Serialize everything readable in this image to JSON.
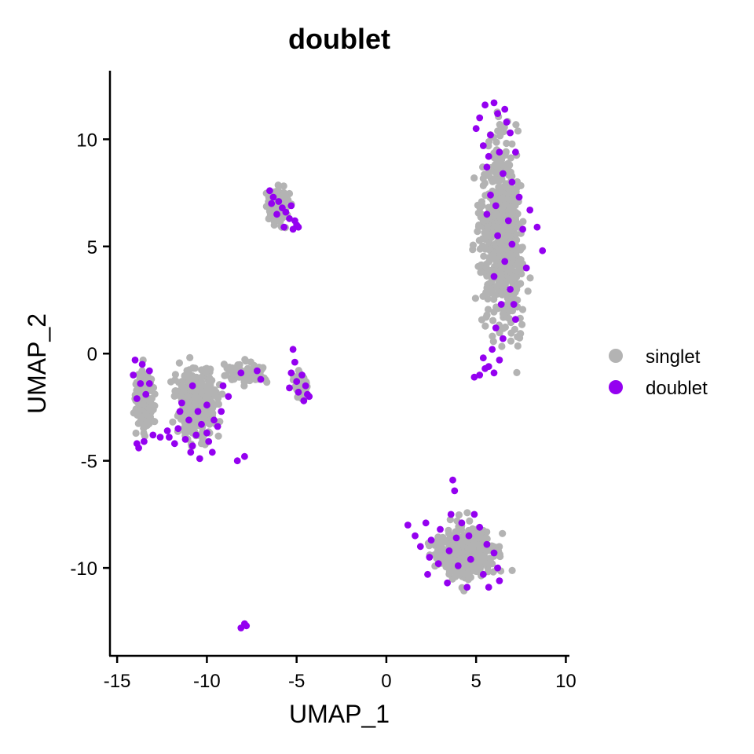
{
  "chart_data": {
    "type": "scatter",
    "title": "doublet",
    "xlabel": "UMAP_1",
    "ylabel": "UMAP_2",
    "xlim": [
      -15.4,
      10.2
    ],
    "ylim": [
      -14.1,
      13.2
    ],
    "xticks": [
      -15,
      -10,
      -5,
      0,
      5,
      10
    ],
    "yticks": [
      -10,
      -5,
      0,
      5,
      10
    ],
    "grid": false,
    "legend": {
      "position": "right",
      "entries": [
        "singlet",
        "doublet"
      ]
    },
    "colors": {
      "singlet": "#b3b3b3",
      "doublet": "#9400f0"
    },
    "clusters": [
      {
        "name": "right-upper",
        "cx": 6.4,
        "cy": 5.5,
        "sx": 1.1,
        "sy": 3.8,
        "n": 650
      },
      {
        "name": "right-lower",
        "cx": 4.5,
        "cy": -9.3,
        "sx": 1.5,
        "sy": 1.1,
        "n": 450
      },
      {
        "name": "left-core",
        "cx": -10.5,
        "cy": -2.3,
        "sx": 1.0,
        "sy": 1.4,
        "n": 450
      },
      {
        "name": "left-wing",
        "cx": -13.5,
        "cy": -2.2,
        "sx": 0.5,
        "sy": 1.3,
        "n": 160
      },
      {
        "name": "left-arm",
        "cx": -7.8,
        "cy": -0.9,
        "sx": 1.0,
        "sy": 0.5,
        "n": 90
      },
      {
        "name": "top-small",
        "cx": -6.0,
        "cy": 6.8,
        "sx": 0.5,
        "sy": 0.8,
        "n": 130
      },
      {
        "name": "middle-small",
        "cx": -4.8,
        "cy": -1.5,
        "sx": 0.4,
        "sy": 0.5,
        "n": 40
      }
    ],
    "series": [
      {
        "name": "doublet",
        "points": [
          [
            6.0,
            11.7
          ],
          [
            5.5,
            11.6
          ],
          [
            6.2,
            11.2
          ],
          [
            5.2,
            11.0
          ],
          [
            6.6,
            11.4
          ],
          [
            5.0,
            10.5
          ],
          [
            5.8,
            10.2
          ],
          [
            6.7,
            10.8
          ],
          [
            5.4,
            9.7
          ],
          [
            6.3,
            9.4
          ],
          [
            7.2,
            9.4
          ],
          [
            5.6,
            8.7
          ],
          [
            6.5,
            8.4
          ],
          [
            7.0,
            8.0
          ],
          [
            5.8,
            7.4
          ],
          [
            6.1,
            6.9
          ],
          [
            7.4,
            7.3
          ],
          [
            8.0,
            6.7
          ],
          [
            5.6,
            6.5
          ],
          [
            6.8,
            6.2
          ],
          [
            7.6,
            5.8
          ],
          [
            8.4,
            5.9
          ],
          [
            6.2,
            5.5
          ],
          [
            7.0,
            5.1
          ],
          [
            8.7,
            4.8
          ],
          [
            6.6,
            4.3
          ],
          [
            7.8,
            4.0
          ],
          [
            6.0,
            3.6
          ],
          [
            6.9,
            3.0
          ],
          [
            6.4,
            2.3
          ],
          [
            7.2,
            1.6
          ],
          [
            6.1,
            1.2
          ],
          [
            6.5,
            0.7
          ],
          [
            5.9,
            0.2
          ],
          [
            6.3,
            -0.3
          ],
          [
            5.7,
            -0.6
          ],
          [
            6.0,
            -0.9
          ],
          [
            5.5,
            -0.7
          ],
          [
            5.2,
            -1.0
          ],
          [
            4.9,
            -1.1
          ],
          [
            5.4,
            -0.2
          ],
          [
            7.1,
            2.3
          ],
          [
            6.9,
            10.3
          ],
          [
            5.7,
            9.2
          ],
          [
            3.7,
            -5.9
          ],
          [
            3.8,
            -6.4
          ],
          [
            1.2,
            -8.0
          ],
          [
            1.6,
            -8.5
          ],
          [
            2.2,
            -7.9
          ],
          [
            2.5,
            -8.7
          ],
          [
            3.0,
            -8.2
          ],
          [
            3.6,
            -7.5
          ],
          [
            4.2,
            -7.9
          ],
          [
            4.6,
            -8.5
          ],
          [
            5.2,
            -8.1
          ],
          [
            5.6,
            -8.9
          ],
          [
            6.0,
            -9.3
          ],
          [
            2.4,
            -9.5
          ],
          [
            2.9,
            -9.8
          ],
          [
            3.5,
            -9.2
          ],
          [
            4.0,
            -9.9
          ],
          [
            4.7,
            -9.6
          ],
          [
            5.4,
            -10.3
          ],
          [
            6.2,
            -10.0
          ],
          [
            2.3,
            -10.3
          ],
          [
            3.4,
            -10.7
          ],
          [
            4.5,
            -10.9
          ],
          [
            5.7,
            -10.9
          ],
          [
            6.3,
            -10.6
          ],
          [
            3.9,
            -8.6
          ],
          [
            4.9,
            -7.5
          ],
          [
            1.9,
            -9.0
          ],
          [
            -10.8,
            -1.5
          ],
          [
            -10.0,
            -2.4
          ],
          [
            -11.4,
            -2.3
          ],
          [
            -9.6,
            -3.1
          ],
          [
            -11.0,
            -3.1
          ],
          [
            -10.3,
            -3.3
          ],
          [
            -10.6,
            -3.8
          ],
          [
            -10.0,
            -3.7
          ],
          [
            -11.6,
            -3.5
          ],
          [
            -9.4,
            -3.4
          ],
          [
            -10.5,
            -2.7
          ],
          [
            -9.9,
            -4.1
          ],
          [
            -10.8,
            -4.3
          ],
          [
            -11.2,
            -4.0
          ],
          [
            -9.7,
            -4.6
          ],
          [
            -10.9,
            -4.6
          ],
          [
            -10.4,
            -4.9
          ],
          [
            -11.8,
            -4.2
          ],
          [
            -12.1,
            -3.9
          ],
          [
            -11.5,
            -2.7
          ],
          [
            -9.2,
            -2.7
          ],
          [
            -14.0,
            -0.3
          ],
          [
            -13.6,
            -0.5
          ],
          [
            -14.1,
            -1.0
          ],
          [
            -13.7,
            -1.4
          ],
          [
            -13.2,
            -1.4
          ],
          [
            -13.9,
            -2.1
          ],
          [
            -13.4,
            -1.9
          ],
          [
            -13.0,
            -3.8
          ],
          [
            -13.5,
            -4.1
          ],
          [
            -13.9,
            -4.2
          ],
          [
            -12.6,
            -3.9
          ],
          [
            -12.2,
            -3.6
          ],
          [
            -13.2,
            -0.8
          ],
          [
            -13.8,
            -4.4
          ],
          [
            -8.3,
            -5.0
          ],
          [
            -7.9,
            -4.8
          ],
          [
            -8.1,
            -0.9
          ],
          [
            -7.2,
            -0.8
          ],
          [
            -7.0,
            -1.2
          ],
          [
            -9.1,
            -1.5
          ],
          [
            -8.8,
            -2.0
          ],
          [
            -6.5,
            7.6
          ],
          [
            -6.3,
            7.3
          ],
          [
            -6.0,
            7.1
          ],
          [
            -5.8,
            6.8
          ],
          [
            -5.6,
            6.6
          ],
          [
            -5.4,
            6.3
          ],
          [
            -5.7,
            5.9
          ],
          [
            -5.2,
            5.8
          ],
          [
            -4.9,
            5.9
          ],
          [
            -5.1,
            6.2
          ],
          [
            -6.1,
            6.5
          ],
          [
            -5.3,
            6.9
          ],
          [
            -6.4,
            7.0
          ],
          [
            -5.0,
            6.0
          ],
          [
            -5.3,
            -0.9
          ],
          [
            -5.0,
            -1.3
          ],
          [
            -5.4,
            -1.6
          ],
          [
            -4.7,
            -1.0
          ],
          [
            -4.9,
            -1.8
          ],
          [
            -4.5,
            -1.5
          ],
          [
            -4.3,
            -2.0
          ],
          [
            -4.6,
            -2.2
          ],
          [
            -5.1,
            -0.4
          ],
          [
            -5.2,
            0.2
          ],
          [
            -4.4,
            -1.9
          ],
          [
            -7.9,
            -12.6
          ],
          [
            -8.1,
            -12.8
          ],
          [
            -7.8,
            -12.7
          ]
        ]
      }
    ]
  }
}
